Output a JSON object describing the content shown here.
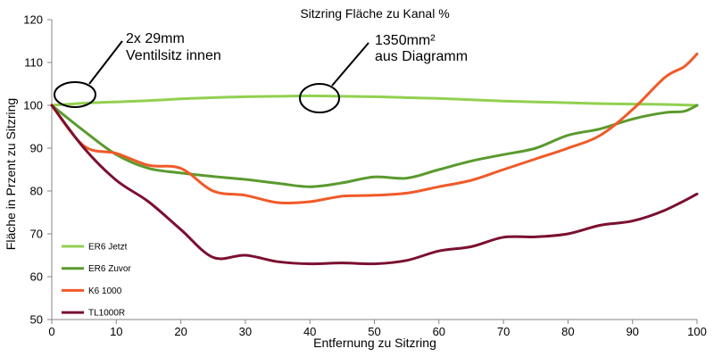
{
  "chart_data": {
    "type": "line",
    "title": "Sitzring Fläche zu Kanal %",
    "xlabel": "Entfernung zu Sitzring",
    "ylabel": "Fläche in Przent zu Sitzring",
    "xlim": [
      0,
      100
    ],
    "ylim": [
      50,
      120
    ],
    "x_ticks": [
      "0",
      "10",
      "20",
      "30",
      "40",
      "50",
      "60",
      "70",
      "80",
      "90",
      "100"
    ],
    "y_ticks": [
      "50",
      "60",
      "70",
      "80",
      "90",
      "100",
      "110",
      "120"
    ],
    "grid": false,
    "legend_position": "left",
    "annotations": [
      {
        "line1": "2x 29mm",
        "line2": "Ventilsitz innen"
      },
      {
        "line1": "1350mm²",
        "line2": "aus Diagramm"
      }
    ],
    "series": [
      {
        "name": "ER6 Jetzt",
        "color": "#92d050",
        "points": [
          [
            0,
            100
          ],
          [
            5,
            100.5
          ],
          [
            10,
            100.8
          ],
          [
            15,
            101.1
          ],
          [
            20,
            101.5
          ],
          [
            25,
            101.8
          ],
          [
            30,
            102
          ],
          [
            35,
            102.1
          ],
          [
            40,
            102.2
          ],
          [
            45,
            102.1
          ],
          [
            50,
            102
          ],
          [
            55,
            101.8
          ],
          [
            60,
            101.6
          ],
          [
            65,
            101.3
          ],
          [
            70,
            101
          ],
          [
            75,
            100.8
          ],
          [
            80,
            100.6
          ],
          [
            85,
            100.4
          ],
          [
            90,
            100.3
          ],
          [
            95,
            100.2
          ],
          [
            100,
            100
          ]
        ]
      },
      {
        "name": "ER6 Zuvor",
        "color": "#5a9a2e",
        "points": [
          [
            0,
            100
          ],
          [
            5,
            94
          ],
          [
            10,
            88.5
          ],
          [
            15,
            85.3
          ],
          [
            20,
            84.2
          ],
          [
            25,
            83.4
          ],
          [
            30,
            82.7
          ],
          [
            35,
            81.8
          ],
          [
            40,
            81
          ],
          [
            45,
            81.9
          ],
          [
            50,
            83.3
          ],
          [
            55,
            83
          ],
          [
            60,
            85
          ],
          [
            65,
            87
          ],
          [
            70,
            88.5
          ],
          [
            75,
            90
          ],
          [
            80,
            93
          ],
          [
            85,
            94.5
          ],
          [
            90,
            96.8
          ],
          [
            95,
            98.3
          ],
          [
            98,
            98.6
          ],
          [
            100,
            100
          ]
        ]
      },
      {
        "name": "K6 1000",
        "color": "#f05a28",
        "points": [
          [
            0,
            100
          ],
          [
            5,
            90.5
          ],
          [
            10,
            88.8
          ],
          [
            15,
            86
          ],
          [
            20,
            85.3
          ],
          [
            25,
            80
          ],
          [
            30,
            79
          ],
          [
            35,
            77.3
          ],
          [
            40,
            77.5
          ],
          [
            45,
            78.8
          ],
          [
            50,
            79
          ],
          [
            55,
            79.5
          ],
          [
            60,
            81
          ],
          [
            65,
            82.5
          ],
          [
            70,
            85
          ],
          [
            75,
            87.5
          ],
          [
            80,
            90
          ],
          [
            85,
            93
          ],
          [
            90,
            99
          ],
          [
            95,
            106.5
          ],
          [
            98,
            109
          ],
          [
            100,
            112
          ]
        ]
      },
      {
        "name": "TL1000R",
        "color": "#7b1030",
        "points": [
          [
            0,
            100
          ],
          [
            5,
            90
          ],
          [
            10,
            82.5
          ],
          [
            15,
            77.5
          ],
          [
            20,
            71
          ],
          [
            25,
            64.5
          ],
          [
            30,
            65
          ],
          [
            35,
            63.5
          ],
          [
            40,
            63
          ],
          [
            45,
            63.2
          ],
          [
            50,
            63
          ],
          [
            55,
            63.8
          ],
          [
            60,
            66
          ],
          [
            65,
            67
          ],
          [
            70,
            69.2
          ],
          [
            75,
            69.3
          ],
          [
            80,
            70
          ],
          [
            85,
            72
          ],
          [
            90,
            73
          ],
          [
            95,
            75.5
          ],
          [
            100,
            79.3
          ]
        ]
      }
    ]
  }
}
